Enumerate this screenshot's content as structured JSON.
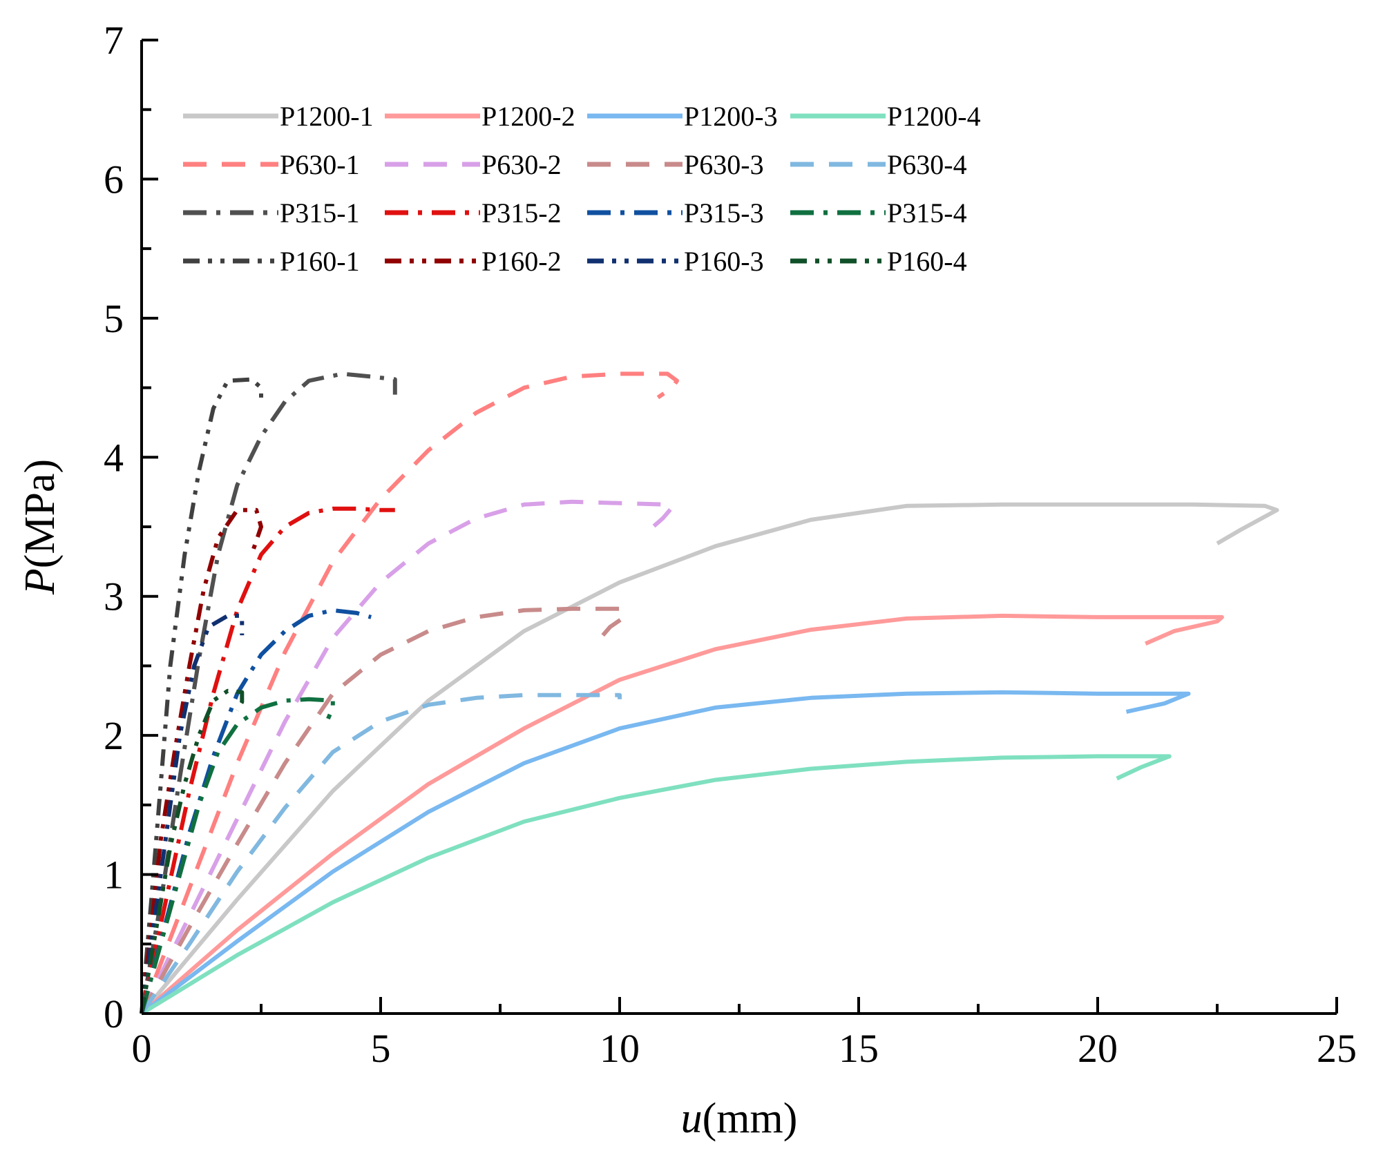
{
  "chart_data": {
    "type": "line",
    "title": "",
    "xlabel": "u(mm)",
    "xlabel_italic": "u",
    "xlabel_unit": "(mm)",
    "ylabel": "P(MPa)",
    "ylabel_italic": "P",
    "ylabel_unit": "(MPa)",
    "xlim": [
      0,
      25
    ],
    "ylim": [
      0,
      7
    ],
    "xticks": [
      "0",
      "5",
      "10",
      "15",
      "20",
      "25"
    ],
    "yticks": [
      "0",
      "1",
      "2",
      "3",
      "4",
      "5",
      "6",
      "7"
    ],
    "grid": false,
    "legend_position": "top",
    "series": [
      {
        "name": "P1200-1",
        "color": "#c8c8c8",
        "style": "solid",
        "points": [
          [
            0,
            0
          ],
          [
            2,
            0.82
          ],
          [
            4,
            1.6
          ],
          [
            6,
            2.25
          ],
          [
            8,
            2.75
          ],
          [
            10,
            3.1
          ],
          [
            12,
            3.36
          ],
          [
            14,
            3.55
          ],
          [
            16,
            3.65
          ],
          [
            18,
            3.66
          ],
          [
            20,
            3.66
          ],
          [
            22,
            3.66
          ],
          [
            23.5,
            3.65
          ],
          [
            23.75,
            3.62
          ],
          [
            23,
            3.48
          ],
          [
            22.5,
            3.38
          ]
        ]
      },
      {
        "name": "P1200-2",
        "color": "#ff9a9a",
        "style": "solid",
        "points": [
          [
            0,
            0
          ],
          [
            2,
            0.6
          ],
          [
            4,
            1.15
          ],
          [
            6,
            1.65
          ],
          [
            8,
            2.05
          ],
          [
            10,
            2.4
          ],
          [
            12,
            2.62
          ],
          [
            14,
            2.76
          ],
          [
            16,
            2.84
          ],
          [
            18,
            2.86
          ],
          [
            20,
            2.85
          ],
          [
            22,
            2.85
          ],
          [
            22.6,
            2.85
          ],
          [
            22.5,
            2.82
          ],
          [
            21.6,
            2.75
          ],
          [
            21,
            2.66
          ]
        ]
      },
      {
        "name": "P1200-3",
        "color": "#79b8f0",
        "style": "solid",
        "points": [
          [
            0,
            0
          ],
          [
            2,
            0.52
          ],
          [
            4,
            1.02
          ],
          [
            6,
            1.45
          ],
          [
            8,
            1.8
          ],
          [
            10,
            2.05
          ],
          [
            12,
            2.2
          ],
          [
            14,
            2.27
          ],
          [
            16,
            2.3
          ],
          [
            18,
            2.31
          ],
          [
            20,
            2.3
          ],
          [
            21.9,
            2.3
          ],
          [
            21.4,
            2.23
          ],
          [
            20.6,
            2.17
          ]
        ]
      },
      {
        "name": "P1200-4",
        "color": "#7fe0c0",
        "style": "solid",
        "points": [
          [
            0,
            0
          ],
          [
            2,
            0.42
          ],
          [
            4,
            0.8
          ],
          [
            6,
            1.12
          ],
          [
            8,
            1.38
          ],
          [
            10,
            1.55
          ],
          [
            12,
            1.68
          ],
          [
            14,
            1.76
          ],
          [
            16,
            1.81
          ],
          [
            18,
            1.84
          ],
          [
            20,
            1.85
          ],
          [
            21.5,
            1.85
          ],
          [
            20.9,
            1.77
          ],
          [
            20.4,
            1.69
          ]
        ]
      },
      {
        "name": "P630-1",
        "color": "#ff8080",
        "style": "dashed",
        "points": [
          [
            0,
            0
          ],
          [
            1,
            0.9
          ],
          [
            2,
            1.8
          ],
          [
            3,
            2.6
          ],
          [
            4,
            3.25
          ],
          [
            5,
            3.7
          ],
          [
            6,
            4.05
          ],
          [
            7,
            4.32
          ],
          [
            8,
            4.5
          ],
          [
            9,
            4.58
          ],
          [
            10,
            4.6
          ],
          [
            11,
            4.6
          ],
          [
            11.2,
            4.55
          ],
          [
            11.1,
            4.5
          ],
          [
            10.8,
            4.43
          ]
        ]
      },
      {
        "name": "P630-2",
        "color": "#d8a0e8",
        "style": "dashed",
        "points": [
          [
            0,
            0
          ],
          [
            1,
            0.7
          ],
          [
            2,
            1.4
          ],
          [
            3,
            2.1
          ],
          [
            4,
            2.7
          ],
          [
            5,
            3.1
          ],
          [
            6,
            3.38
          ],
          [
            7,
            3.56
          ],
          [
            8,
            3.66
          ],
          [
            9,
            3.68
          ],
          [
            10,
            3.67
          ],
          [
            11,
            3.66
          ],
          [
            11.1,
            3.64
          ],
          [
            10.9,
            3.56
          ],
          [
            10.7,
            3.5
          ]
        ]
      },
      {
        "name": "P630-3",
        "color": "#c88a8a",
        "style": "dashed",
        "points": [
          [
            0,
            0
          ],
          [
            1,
            0.62
          ],
          [
            2,
            1.22
          ],
          [
            3,
            1.8
          ],
          [
            4,
            2.3
          ],
          [
            5,
            2.58
          ],
          [
            6,
            2.75
          ],
          [
            7,
            2.85
          ],
          [
            8,
            2.9
          ],
          [
            9,
            2.91
          ],
          [
            10,
            2.91
          ],
          [
            10.1,
            2.85
          ],
          [
            9.8,
            2.78
          ],
          [
            9.6,
            2.7
          ]
        ]
      },
      {
        "name": "P630-4",
        "color": "#80b8e0",
        "style": "dashed",
        "points": [
          [
            0,
            0
          ],
          [
            1,
            0.5
          ],
          [
            2,
            1.02
          ],
          [
            3,
            1.48
          ],
          [
            4,
            1.88
          ],
          [
            5,
            2.1
          ],
          [
            6,
            2.22
          ],
          [
            7,
            2.27
          ],
          [
            8,
            2.29
          ],
          [
            9,
            2.29
          ],
          [
            10,
            2.29
          ],
          [
            10,
            2.26
          ]
        ]
      },
      {
        "name": "P315-1",
        "color": "#505050",
        "style": "dashdot",
        "points": [
          [
            0,
            0
          ],
          [
            0.4,
            0.8
          ],
          [
            0.8,
            1.7
          ],
          [
            1.2,
            2.55
          ],
          [
            1.6,
            3.3
          ],
          [
            2,
            3.8
          ],
          [
            2.5,
            4.15
          ],
          [
            3,
            4.4
          ],
          [
            3.5,
            4.55
          ],
          [
            4.2,
            4.6
          ],
          [
            4.8,
            4.58
          ],
          [
            5.3,
            4.56
          ],
          [
            5.3,
            4.5
          ],
          [
            5.3,
            4.45
          ]
        ]
      },
      {
        "name": "P315-2",
        "color": "#e01010",
        "style": "dashdot",
        "points": [
          [
            0,
            0
          ],
          [
            0.5,
            0.8
          ],
          [
            1,
            1.6
          ],
          [
            1.5,
            2.3
          ],
          [
            2,
            2.9
          ],
          [
            2.5,
            3.3
          ],
          [
            3,
            3.5
          ],
          [
            3.5,
            3.6
          ],
          [
            4,
            3.63
          ],
          [
            4.5,
            3.63
          ],
          [
            5,
            3.62
          ],
          [
            5.3,
            3.62
          ]
        ]
      },
      {
        "name": "P315-3",
        "color": "#1050a0",
        "style": "dashdot",
        "points": [
          [
            0,
            0
          ],
          [
            0.5,
            0.65
          ],
          [
            1,
            1.3
          ],
          [
            1.5,
            1.85
          ],
          [
            2,
            2.3
          ],
          [
            2.5,
            2.58
          ],
          [
            3,
            2.75
          ],
          [
            3.5,
            2.86
          ],
          [
            4,
            2.9
          ],
          [
            4.5,
            2.88
          ],
          [
            4.8,
            2.85
          ]
        ]
      },
      {
        "name": "P315-4",
        "color": "#107040",
        "style": "dashdot",
        "points": [
          [
            0,
            0
          ],
          [
            0.4,
            0.5
          ],
          [
            0.8,
            1.0
          ],
          [
            1.2,
            1.5
          ],
          [
            1.6,
            1.88
          ],
          [
            2,
            2.08
          ],
          [
            2.5,
            2.2
          ],
          [
            3,
            2.25
          ],
          [
            3.5,
            2.26
          ],
          [
            4,
            2.25
          ],
          [
            4,
            2.2
          ],
          [
            3.9,
            2.12
          ]
        ]
      },
      {
        "name": "P160-1",
        "color": "#404040",
        "style": "dashdotdot",
        "points": [
          [
            0,
            0
          ],
          [
            0.2,
            0.8
          ],
          [
            0.4,
            1.65
          ],
          [
            0.6,
            2.5
          ],
          [
            0.9,
            3.3
          ],
          [
            1.2,
            3.9
          ],
          [
            1.5,
            4.35
          ],
          [
            1.8,
            4.55
          ],
          [
            2.3,
            4.56
          ],
          [
            2.5,
            4.5
          ],
          [
            2.5,
            4.38
          ]
        ]
      },
      {
        "name": "P160-2",
        "color": "#900000",
        "style": "dashdotdot",
        "points": [
          [
            0,
            0
          ],
          [
            0.2,
            0.6
          ],
          [
            0.4,
            1.25
          ],
          [
            0.7,
            1.9
          ],
          [
            1,
            2.5
          ],
          [
            1.3,
            3.05
          ],
          [
            1.6,
            3.42
          ],
          [
            2,
            3.62
          ],
          [
            2.4,
            3.62
          ],
          [
            2.5,
            3.5
          ],
          [
            2.3,
            3.3
          ]
        ]
      },
      {
        "name": "P160-3",
        "color": "#103070",
        "style": "dashdotdot",
        "points": [
          [
            0,
            0
          ],
          [
            0.2,
            0.5
          ],
          [
            0.4,
            1.0
          ],
          [
            0.6,
            1.5
          ],
          [
            0.8,
            2.0
          ],
          [
            1.1,
            2.5
          ],
          [
            1.4,
            2.78
          ],
          [
            1.8,
            2.86
          ],
          [
            2.1,
            2.86
          ],
          [
            2.1,
            2.8
          ],
          [
            2.1,
            2.72
          ]
        ]
      },
      {
        "name": "P160-4",
        "color": "#105028",
        "style": "dashdotdot",
        "points": [
          [
            0,
            0
          ],
          [
            0.2,
            0.4
          ],
          [
            0.4,
            0.8
          ],
          [
            0.6,
            1.2
          ],
          [
            0.9,
            1.65
          ],
          [
            1.2,
            2.0
          ],
          [
            1.5,
            2.25
          ],
          [
            1.8,
            2.32
          ],
          [
            2.1,
            2.31
          ],
          [
            2.1,
            2.24
          ],
          [
            2,
            2.18
          ]
        ]
      }
    ]
  }
}
